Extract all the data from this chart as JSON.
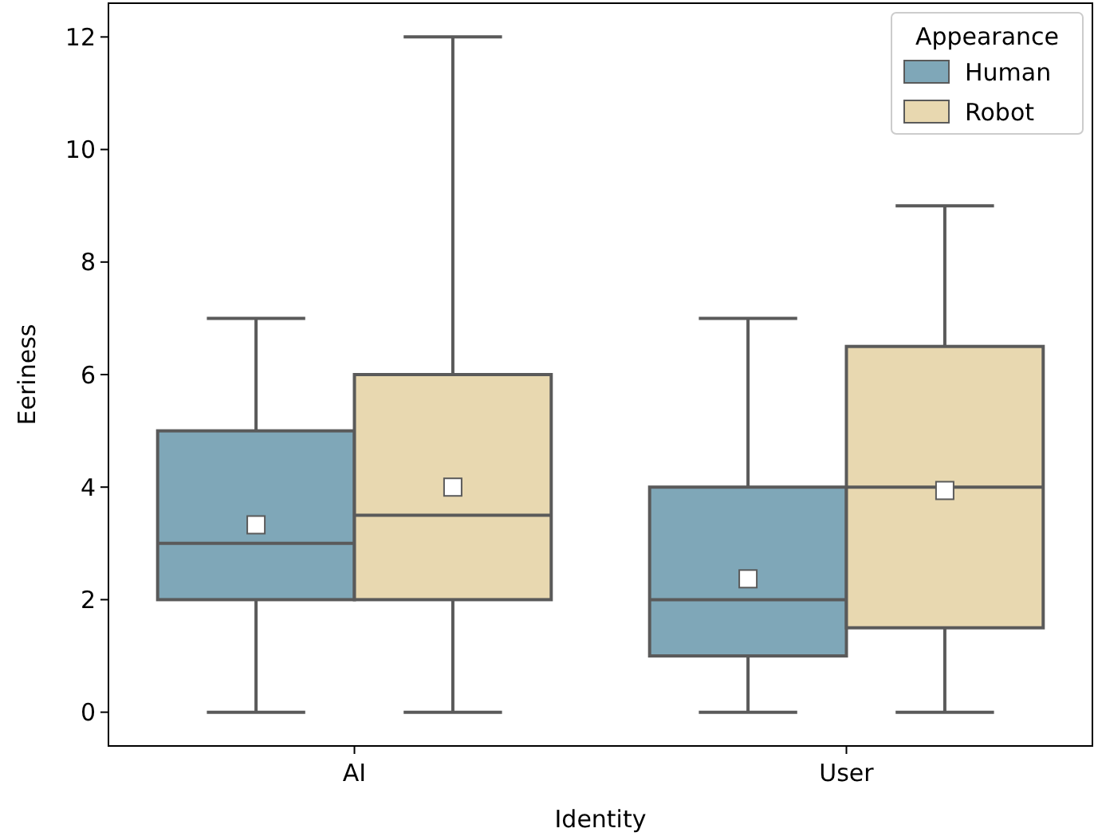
{
  "chart_data": {
    "type": "box",
    "xlabel": "Identity",
    "ylabel": "Eeriness",
    "categories": [
      "AI",
      "User"
    ],
    "legend_title": "Appearance",
    "legend": "top right",
    "grid": false,
    "marker": "square",
    "ylim": [
      -0.6,
      12.6
    ],
    "yticks": [
      0,
      2,
      4,
      6,
      8,
      10,
      12
    ],
    "series": [
      {
        "name": "Human",
        "color": "#7fa7b8",
        "boxes": [
          {
            "low": 0,
            "q1": 2,
            "median": 3,
            "q3": 5,
            "high": 7,
            "mean": 3.33
          },
          {
            "low": 0,
            "q1": 1,
            "median": 2,
            "q3": 4,
            "high": 7,
            "mean": 2.37
          }
        ]
      },
      {
        "name": "Robot",
        "color": "#e8d8b0",
        "boxes": [
          {
            "low": 0,
            "q1": 2,
            "median": 3.5,
            "q3": 6,
            "high": 12,
            "mean": 4.0
          },
          {
            "low": 0,
            "q1": 1.5,
            "median": 4,
            "q3": 6.5,
            "high": 9,
            "mean": 3.94
          }
        ]
      }
    ]
  }
}
